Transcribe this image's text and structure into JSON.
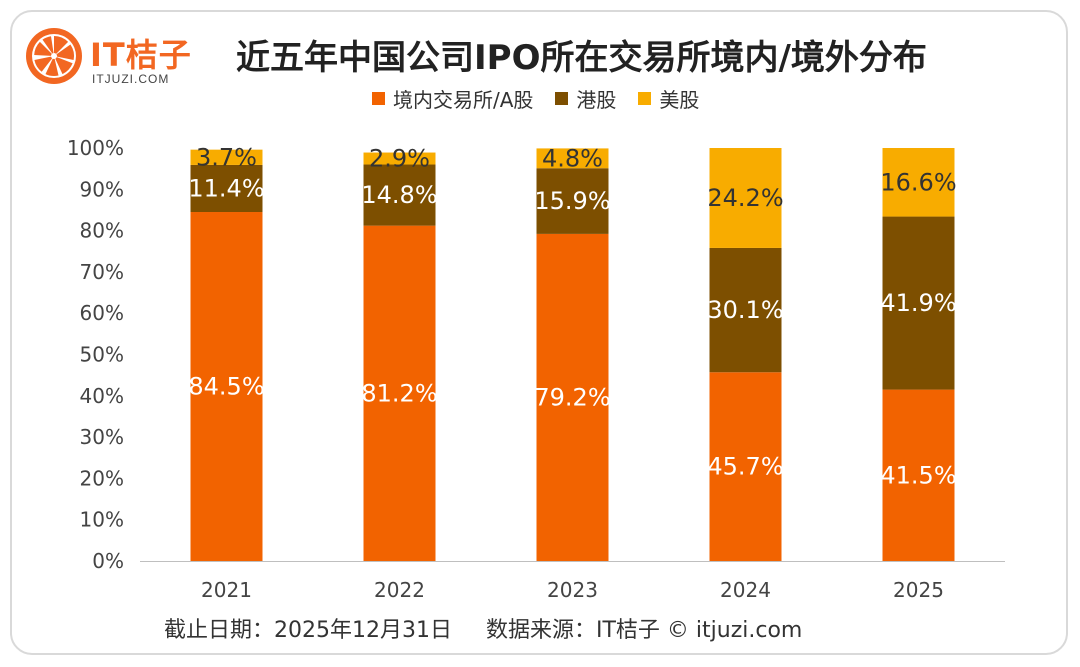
{
  "brand": {
    "name": "IT桔子",
    "url": "ITJUZI.COM"
  },
  "title": "近五年中国公司IPO所在交易所境内/境外分布",
  "legend": [
    {
      "label": "境内交易所/A股",
      "color": "#f26300"
    },
    {
      "label": "港股",
      "color": "#7d4f00"
    },
    {
      "label": "美股",
      "color": "#f8ac00"
    }
  ],
  "footer": {
    "cutoff": "截止日期：2025年12月31日",
    "source": "数据来源：IT桔子 © itjuzi.com"
  },
  "chart_data": {
    "type": "bar",
    "stacked": true,
    "percent_stacked": true,
    "categories": [
      "2021",
      "2022",
      "2023",
      "2024",
      "2025"
    ],
    "series": [
      {
        "name": "境内交易所/A股",
        "color": "#f26300",
        "label_color": "#ffffff",
        "values": [
          84.5,
          81.2,
          79.2,
          45.7,
          41.5
        ]
      },
      {
        "name": "港股",
        "color": "#7d4f00",
        "label_color": "#ffffff",
        "values": [
          11.4,
          14.8,
          15.9,
          30.1,
          41.9
        ]
      },
      {
        "name": "美股",
        "color": "#f8ac00",
        "label_color": "#333333",
        "values": [
          3.7,
          2.9,
          4.8,
          24.2,
          16.6
        ]
      }
    ],
    "data_labels": [
      [
        "84.5%",
        "81.2%",
        "79.2%",
        "45.7%",
        "41.5%"
      ],
      [
        "11.4%",
        "14.8%",
        "15.9%",
        "30.1%",
        "41.9%"
      ],
      [
        "3.7%",
        "2.9%",
        "4.8%",
        "24.2%",
        "16.6%"
      ]
    ],
    "yticks": [
      "0%",
      "10%",
      "20%",
      "30%",
      "40%",
      "50%",
      "60%",
      "70%",
      "80%",
      "90%",
      "100%"
    ],
    "ylim": [
      0,
      100
    ],
    "grid": false,
    "legend_position": "top-center"
  }
}
